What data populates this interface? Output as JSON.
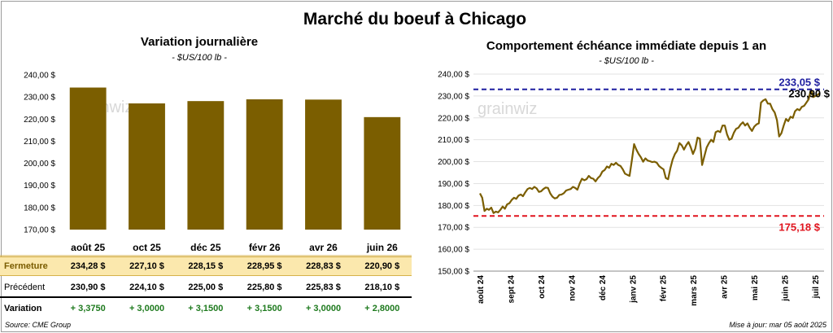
{
  "main_title": "Marché du boeuf à Chicago",
  "left": {
    "title": "Variation journalière",
    "subtitle": "- $US/100 lb -",
    "table": {
      "labels": {
        "fermeture": "Fermeture",
        "precedent": "Précédent",
        "variation": "Variation"
      },
      "fermeture": [
        "234,28 $",
        "227,10 $",
        "228,15 $",
        "228,95 $",
        "228,83 $",
        "220,90 $"
      ],
      "precedent": [
        "230,90 $",
        "224,10 $",
        "225,00 $",
        "225,80 $",
        "225,83 $",
        "218,10 $"
      ],
      "variation": [
        "+ 3,3750",
        "+ 3,0000",
        "+ 3,1500",
        "+ 3,1500",
        "+ 3,0000",
        "+ 2,8000"
      ]
    }
  },
  "right": {
    "title": "Comportement échéance immédiate depuis 1 an",
    "subtitle": "- $US/100 lb -"
  },
  "watermark": "grainwiz",
  "source": "Source: CME Group",
  "update": "Mise à jour: mar 05 août 2025",
  "colors": {
    "bar": "#7b5e00",
    "line": "#7b5e00",
    "high": "#1f1fa0",
    "low": "#e0141e",
    "fermeture_bg": "#fbe8ad",
    "variation": "#1e7a1e"
  },
  "chart_data": [
    {
      "type": "bar",
      "categories": [
        "août 25",
        "oct 25",
        "déc 25",
        "févr 26",
        "avr 26",
        "juin 26"
      ],
      "values": [
        234.28,
        227.1,
        228.15,
        228.95,
        228.83,
        220.9
      ],
      "ylim": [
        170,
        240
      ],
      "yticks": [
        "170,00 $",
        "180,00 $",
        "190,00 $",
        "200,00 $",
        "210,00 $",
        "220,00 $",
        "230,00 $",
        "240,00 $"
      ]
    },
    {
      "type": "line",
      "x_labels": [
        "août 24",
        "sept 24",
        "oct 24",
        "nov 24",
        "déc 24",
        "janv 25",
        "févr 25",
        "mars 25",
        "avr 25",
        "mai 25",
        "juin 25",
        "juil 25"
      ],
      "values": [
        185.5,
        183.5,
        177.5,
        178.5,
        178.0,
        179.0,
        176.5,
        177.2,
        176.8,
        178.0,
        179.5,
        178.5,
        180.5,
        181.0,
        182.5,
        183.5,
        183.0,
        184.5,
        185.0,
        184.2,
        186.0,
        187.5,
        188.0,
        187.5,
        188.5,
        187.8,
        186.2,
        186.5,
        187.5,
        188.2,
        188.0,
        185.5,
        184.0,
        183.2,
        183.5,
        184.8,
        185.0,
        185.6,
        186.8,
        187.2,
        187.5,
        188.5,
        188.0,
        187.2,
        190.0,
        192.2,
        191.5,
        192.0,
        193.5,
        192.5,
        192.2,
        191.0,
        192.5,
        193.5,
        195.5,
        196.2,
        197.8,
        197.2,
        199.0,
        198.5,
        199.5,
        198.5,
        198.0,
        196.5,
        194.5,
        194.0,
        193.5,
        200.5,
        208.0,
        205.5,
        203.5,
        202.0,
        200.0,
        201.5,
        200.5,
        200.2,
        199.8,
        200.0,
        199.5,
        198.0,
        197.2,
        196.5,
        192.5,
        192.0,
        197.0,
        201.0,
        203.5,
        205.0,
        208.5,
        207.5,
        205.5,
        207.5,
        209.0,
        206.5,
        203.5,
        206.0,
        211.0,
        210.5,
        198.5,
        202.5,
        206.5,
        208.5,
        210.0,
        209.0,
        213.5,
        214.0,
        213.5,
        216.5,
        216.5,
        212.5,
        210.0,
        210.5,
        213.2,
        215.0,
        215.5,
        217.0,
        218.0,
        216.5,
        217.5,
        215.5,
        214.0,
        216.0,
        217.0,
        217.5,
        227.0,
        228.0,
        228.5,
        226.5,
        226.5,
        224.0,
        222.5,
        219.0,
        211.5,
        213.0,
        216.5,
        219.5,
        218.5,
        220.5,
        220.0,
        223.0,
        224.0,
        223.5,
        225.0,
        225.5,
        227.0,
        228.5,
        233.0,
        229.5,
        230.0,
        230.5,
        231.5
      ],
      "ylim": [
        150,
        240
      ],
      "yticks": [
        "150,00 $",
        "160,00 $",
        "170,00 $",
        "180,00 $",
        "190,00 $",
        "200,00 $",
        "210,00 $",
        "220,00 $",
        "230,00 $",
        "240,00 $"
      ],
      "high": {
        "value": 233.05,
        "label": "233,05 $"
      },
      "low": {
        "value": 175.18,
        "label": "175,18 $"
      },
      "last": {
        "value": 230.9,
        "label": "230,90 $"
      }
    }
  ]
}
